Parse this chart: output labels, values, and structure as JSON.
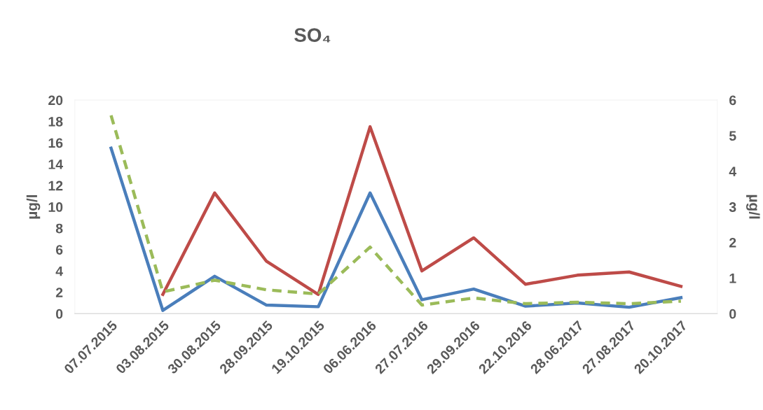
{
  "chart_data": {
    "type": "line",
    "title": "SO₄",
    "ylabel": "µg/l",
    "y2label": "µg/l",
    "categories": [
      "07.07.2015",
      "03.08.2015",
      "30.08.2015",
      "28.09.2015",
      "19.10.2015",
      "06.06.2016",
      "27.07.2016",
      "29.09.2016",
      "22.10.2016",
      "28.06.2017",
      "27.08.2017",
      "20.10.2017"
    ],
    "series": [
      {
        "color": "#4a7ebb",
        "values": [
          15.5,
          0.3,
          3.5,
          0.8,
          0.65,
          11.3,
          1.3,
          2.3,
          0.7,
          1.0,
          0.6,
          1.5
        ]
      },
      {
        "color": "#be4b48",
        "values": [
          null,
          1.8,
          11.3,
          4.9,
          1.8,
          17.5,
          4.0,
          7.1,
          2.75,
          3.6,
          3.9,
          2.55
        ]
      },
      {
        "color": "#9bbb59",
        "axis": "y2",
        "line_style": "dashed",
        "values": [
          5.57,
          0.61,
          0.94,
          0.67,
          0.55,
          1.87,
          0.24,
          0.44,
          0.28,
          0.32,
          0.28,
          0.35
        ]
      }
    ],
    "ylim": [
      0,
      20
    ],
    "yticks": [
      0,
      2,
      4,
      6,
      8,
      10,
      12,
      14,
      16,
      18,
      20
    ],
    "y2lim": [
      0,
      6
    ],
    "y2ticks": [
      0,
      1,
      2,
      3,
      4,
      5,
      6
    ],
    "grid": false,
    "marker": "none"
  }
}
